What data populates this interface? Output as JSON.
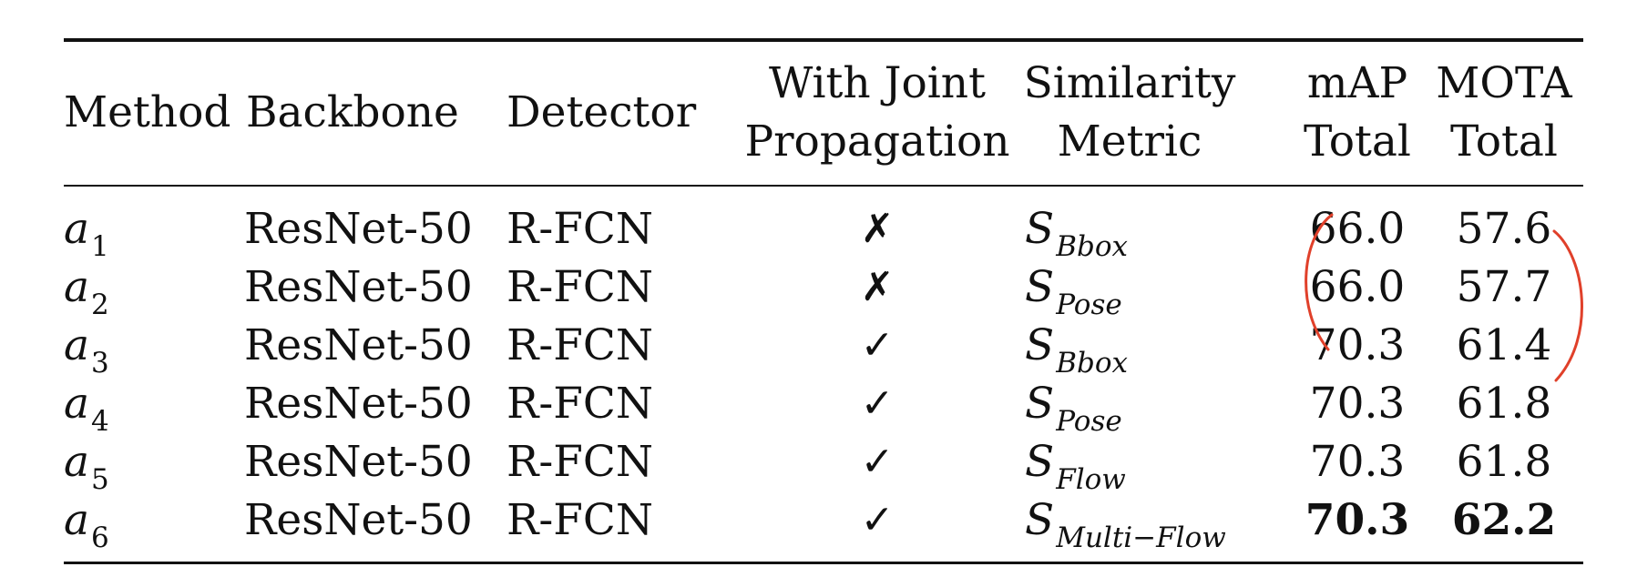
{
  "table": {
    "headers": {
      "method": "Method",
      "backbone": "Backbone",
      "detector": "Detector",
      "joint_line1": "With Joint",
      "joint_line2": "Propagation",
      "sim_line1": "Similarity",
      "sim_line2": "Metric",
      "map_line1": "mAP",
      "map_line2": "Total",
      "mota_line1": "MOTA",
      "mota_line2": "Total"
    },
    "rows": [
      {
        "method": "a",
        "method_sub": "1",
        "backbone": "ResNet-50",
        "detector": "R-FCN",
        "joint": "✗",
        "metric": "S",
        "metric_sub": "Bbox",
        "map": "66.0",
        "mota": "57.6",
        "bold": false
      },
      {
        "method": "a",
        "method_sub": "2",
        "backbone": "ResNet-50",
        "detector": "R-FCN",
        "joint": "✗",
        "metric": "S",
        "metric_sub": "Pose",
        "map": "66.0",
        "mota": "57.7",
        "bold": false
      },
      {
        "method": "a",
        "method_sub": "3",
        "backbone": "ResNet-50",
        "detector": "R-FCN",
        "joint": "✓",
        "metric": "S",
        "metric_sub": "Bbox",
        "map": "70.3",
        "mota": "61.4",
        "bold": false
      },
      {
        "method": "a",
        "method_sub": "4",
        "backbone": "ResNet-50",
        "detector": "R-FCN",
        "joint": "✓",
        "metric": "S",
        "metric_sub": "Pose",
        "map": "70.3",
        "mota": "61.8",
        "bold": false
      },
      {
        "method": "a",
        "method_sub": "5",
        "backbone": "ResNet-50",
        "detector": "R-FCN",
        "joint": "✓",
        "metric": "S",
        "metric_sub": "Flow",
        "map": "70.3",
        "mota": "61.8",
        "bold": false
      },
      {
        "method": "a",
        "method_sub": "6",
        "backbone": "ResNet-50",
        "detector": "R-FCN",
        "joint": "✓",
        "metric": "S",
        "metric_sub": "Multi−Flow",
        "map": "70.3",
        "mota": "62.2",
        "bold": true
      }
    ]
  },
  "annotation": {
    "color": "#e0402a"
  }
}
